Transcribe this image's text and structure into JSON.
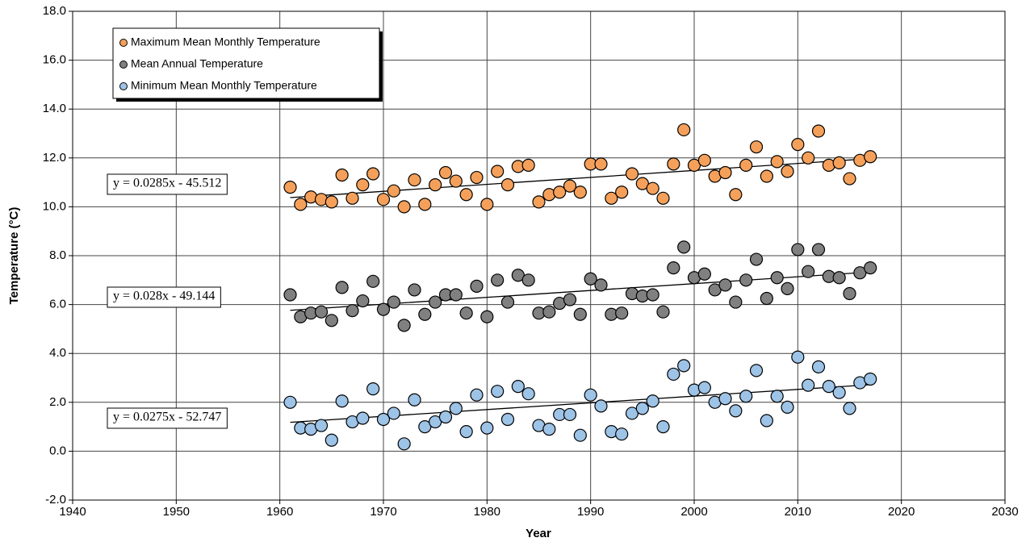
{
  "chart_data": {
    "type": "scatter",
    "x_label": "Year",
    "y_label": "Temperature (°C)",
    "xlim": [
      1940,
      2030
    ],
    "xticks": [
      1940,
      1950,
      1960,
      1970,
      1980,
      1990,
      2000,
      2010,
      2020,
      2030
    ],
    "ylim": [
      -2,
      18
    ],
    "yticks": [
      {
        "value": -2,
        "label": "-2.0"
      },
      {
        "value": 0,
        "label": "0.0"
      },
      {
        "value": 2,
        "label": "2.0"
      },
      {
        "value": 4,
        "label": "4.0"
      },
      {
        "value": 6,
        "label": "6.0"
      },
      {
        "value": 8,
        "label": "8.0"
      },
      {
        "value": 10,
        "label": "10.0"
      },
      {
        "value": 12,
        "label": "12.0"
      },
      {
        "value": 14,
        "label": "14.0"
      },
      {
        "value": 16,
        "label": "16.0"
      },
      {
        "value": 18,
        "label": "18.0"
      }
    ],
    "grid": true,
    "legend": "upper left",
    "x": [
      1961,
      1962,
      1963,
      1964,
      1965,
      1966,
      1967,
      1968,
      1969,
      1970,
      1971,
      1972,
      1973,
      1974,
      1975,
      1976,
      1977,
      1978,
      1979,
      1980,
      1981,
      1982,
      1983,
      1984,
      1985,
      1986,
      1987,
      1988,
      1989,
      1990,
      1991,
      1992,
      1993,
      1994,
      1995,
      1996,
      1997,
      1998,
      1999,
      2000,
      2001,
      2002,
      2003,
      2004,
      2005,
      2006,
      2007,
      2008,
      2009,
      2010,
      2011,
      2012,
      2013,
      2014,
      2015,
      2016,
      2017
    ],
    "series": [
      {
        "name": "Maximum Mean Monthly Temperature",
        "color": "#f5a05a",
        "values": [
          10.8,
          10.1,
          10.4,
          10.3,
          10.2,
          11.3,
          10.35,
          10.9,
          11.35,
          10.3,
          10.65,
          10.0,
          11.1,
          10.1,
          10.9,
          11.4,
          11.05,
          10.5,
          11.2,
          10.1,
          11.45,
          10.9,
          11.65,
          11.7,
          10.2,
          10.5,
          10.6,
          10.85,
          10.6,
          11.75,
          11.75,
          10.35,
          10.6,
          11.35,
          10.95,
          10.75,
          10.35,
          11.75,
          13.15,
          11.7,
          11.9,
          11.25,
          11.4,
          10.5,
          11.7,
          12.45,
          11.25,
          11.85,
          11.45,
          12.55,
          12.0,
          13.1,
          11.7,
          11.8,
          11.15,
          11.9,
          12.05
        ],
        "trendline": {
          "label": "y = 0.0285x - 45.512",
          "slope": 0.0285,
          "intercept": -45.512
        }
      },
      {
        "name": "Mean Annual Temperature",
        "color": "#808080",
        "values": [
          6.4,
          5.5,
          5.65,
          5.7,
          5.35,
          6.7,
          5.75,
          6.15,
          6.95,
          5.8,
          6.1,
          5.15,
          6.6,
          5.6,
          6.1,
          6.4,
          6.4,
          5.65,
          6.75,
          5.5,
          7.0,
          6.1,
          7.2,
          7.0,
          5.65,
          5.7,
          6.05,
          6.2,
          5.6,
          7.05,
          6.8,
          5.6,
          5.65,
          6.45,
          6.35,
          6.4,
          5.7,
          7.5,
          8.35,
          7.1,
          7.25,
          6.6,
          6.8,
          6.1,
          7.0,
          7.85,
          6.25,
          7.1,
          6.65,
          8.25,
          7.35,
          8.25,
          7.15,
          7.1,
          6.45,
          7.3,
          7.5
        ],
        "trendline": {
          "label": "y = 0.028x - 49.144",
          "slope": 0.028,
          "intercept": -49.144
        }
      },
      {
        "name": "Minimum Mean Monthly Temperature",
        "color": "#9dc3e6",
        "values": [
          2.0,
          0.95,
          0.9,
          1.05,
          0.45,
          2.05,
          1.2,
          1.35,
          2.55,
          1.3,
          1.55,
          0.3,
          2.1,
          1.0,
          1.2,
          1.4,
          1.75,
          0.8,
          2.3,
          0.95,
          2.45,
          1.3,
          2.65,
          2.35,
          1.05,
          0.9,
          1.5,
          1.5,
          0.65,
          2.3,
          1.85,
          0.8,
          0.7,
          1.55,
          1.75,
          2.05,
          1.0,
          3.15,
          3.5,
          2.5,
          2.6,
          2.0,
          2.15,
          1.65,
          2.25,
          3.3,
          1.25,
          2.25,
          1.8,
          3.85,
          2.7,
          3.45,
          2.65,
          2.4,
          1.75,
          2.8,
          2.95
        ],
        "trendline": {
          "label": "y = 0.0275x - 52.747",
          "slope": 0.0275,
          "intercept": -52.747
        }
      }
    ]
  }
}
